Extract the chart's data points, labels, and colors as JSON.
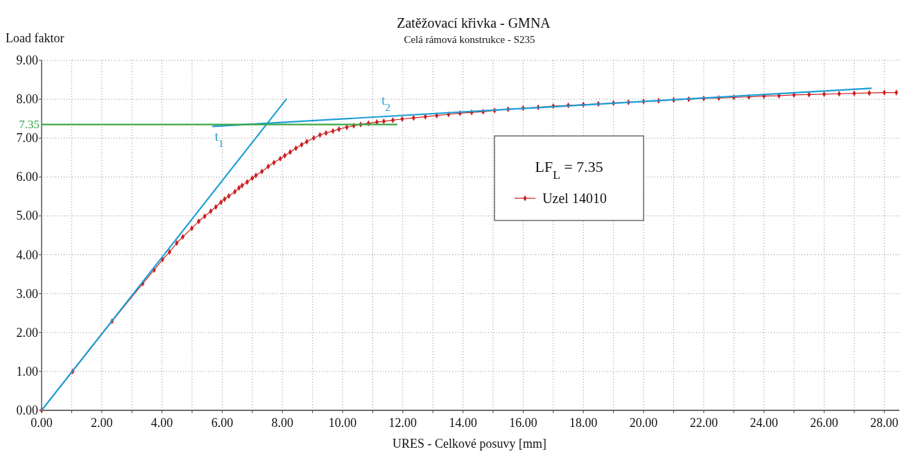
{
  "chart_data": {
    "type": "line",
    "title": "Zatěžovací křivka - GMNA",
    "subtitle": "Celá rámová konstrukce - S235",
    "xlabel": "URES - Celkové posuvy [mm]",
    "ylabel": "Load faktor",
    "legend_title": "LF$_{L}$ = 7.35",
    "x": [
      0,
      1.03,
      2.34,
      3.36,
      3.74,
      4.02,
      4.25,
      4.49,
      4.69,
      4.99,
      5.22,
      5.42,
      5.62,
      5.79,
      5.96,
      6.08,
      6.22,
      6.42,
      6.56,
      6.66,
      6.83,
      7.0,
      7.12,
      7.32,
      7.53,
      7.72,
      7.93,
      8.08,
      8.26,
      8.45,
      8.64,
      8.81,
      9.04,
      9.25,
      9.45,
      9.68,
      9.88,
      10.14,
      10.37,
      10.6,
      10.86,
      11.14,
      11.37,
      11.67,
      11.98,
      12.36,
      12.75,
      13.13,
      13.52,
      13.9,
      14.29,
      14.67,
      15.05,
      15.5,
      16.0,
      16.5,
      17.0,
      17.5,
      18.0,
      18.5,
      19.0,
      19.5,
      20.0,
      20.5,
      21.0,
      21.5,
      22.0,
      22.5,
      23.0,
      23.5,
      24.0,
      24.5,
      25.0,
      25.5,
      26.0,
      26.5,
      27.0,
      27.5,
      28.0,
      28.4
    ],
    "series": [
      {
        "name": "Uzel 14010",
        "color": "#cc1f1f",
        "values": [
          0,
          1.0,
          2.29,
          3.26,
          3.61,
          3.88,
          4.07,
          4.3,
          4.46,
          4.68,
          4.86,
          4.99,
          5.12,
          5.23,
          5.35,
          5.43,
          5.51,
          5.62,
          5.72,
          5.78,
          5.87,
          5.97,
          6.04,
          6.14,
          6.27,
          6.37,
          6.47,
          6.55,
          6.64,
          6.74,
          6.83,
          6.91,
          7.0,
          7.08,
          7.13,
          7.18,
          7.23,
          7.28,
          7.32,
          7.35,
          7.38,
          7.41,
          7.43,
          7.46,
          7.49,
          7.52,
          7.55,
          7.58,
          7.61,
          7.64,
          7.66,
          7.68,
          7.71,
          7.74,
          7.77,
          7.79,
          7.82,
          7.84,
          7.86,
          7.88,
          7.9,
          7.92,
          7.94,
          7.96,
          7.98,
          8.0,
          8.02,
          8.03,
          8.05,
          8.06,
          8.08,
          8.09,
          8.11,
          8.12,
          8.13,
          8.14,
          8.15,
          8.16,
          8.17,
          8.17
        ]
      },
      {
        "type": "line",
        "marker": "none",
        "name": "t$_{1}$",
        "color": "#1d9fd6",
        "x": [
          0,
          8.13
        ],
        "values": [
          0,
          8.0
        ]
      },
      {
        "type": "line",
        "marker": "none",
        "name": "t$_{2}$",
        "color": "#1d9fd6",
        "x": [
          5.69,
          27.56
        ],
        "values": [
          7.3,
          8.28
        ]
      },
      {
        "type": "line",
        "marker": "none",
        "name": "7.35",
        "color": "#3aa845",
        "x": [
          0,
          11.8
        ],
        "values": [
          7.35,
          7.35
        ]
      }
    ],
    "xlim": [
      0,
      28.5
    ],
    "ylim": [
      0,
      9
    ],
    "xticks": [
      {
        "value": 0,
        "label": "0.00"
      },
      {
        "value": 1,
        "label": null
      },
      {
        "value": 2,
        "label": "2.00"
      },
      {
        "value": 3,
        "label": null
      },
      {
        "value": 4,
        "label": "4.00"
      },
      {
        "value": 5,
        "label": null
      },
      {
        "value": 6,
        "label": "6.00"
      },
      {
        "value": 7,
        "label": null
      },
      {
        "value": 8,
        "label": "8.00"
      },
      {
        "value": 9,
        "label": null
      },
      {
        "value": 10,
        "label": "10.00"
      },
      {
        "value": 11,
        "label": null
      },
      {
        "value": 12,
        "label": "12.00"
      },
      {
        "value": 13,
        "label": null
      },
      {
        "value": 14,
        "label": "14.00"
      },
      {
        "value": 15,
        "label": null
      },
      {
        "value": 16,
        "label": "16.00"
      },
      {
        "value": 17,
        "label": null
      },
      {
        "value": 18,
        "label": "18.00"
      },
      {
        "value": 19,
        "label": null
      },
      {
        "value": 20,
        "label": "20.00"
      },
      {
        "value": 21,
        "label": null
      },
      {
        "value": 22,
        "label": "22.00"
      },
      {
        "value": 23,
        "label": null
      },
      {
        "value": 24,
        "label": "24.00"
      },
      {
        "value": 25,
        "label": null
      },
      {
        "value": 26,
        "label": "26.00"
      },
      {
        "value": 27,
        "label": null
      },
      {
        "value": 28,
        "label": "28.00"
      }
    ],
    "yticks": [
      {
        "value": 0,
        "label": "0.00"
      },
      {
        "value": 1,
        "label": "1.00"
      },
      {
        "value": 2,
        "label": "2.00"
      },
      {
        "value": 3,
        "label": "3.00"
      },
      {
        "value": 4,
        "label": "4.00"
      },
      {
        "value": 5,
        "label": "5.00"
      },
      {
        "value": 6,
        "label": "6.00"
      },
      {
        "value": 7,
        "label": "7.00"
      },
      {
        "value": 8,
        "label": "8.00"
      },
      {
        "value": 9,
        "label": "9.00"
      }
    ],
    "grid": true,
    "legend": "right",
    "marker": "diamond"
  }
}
